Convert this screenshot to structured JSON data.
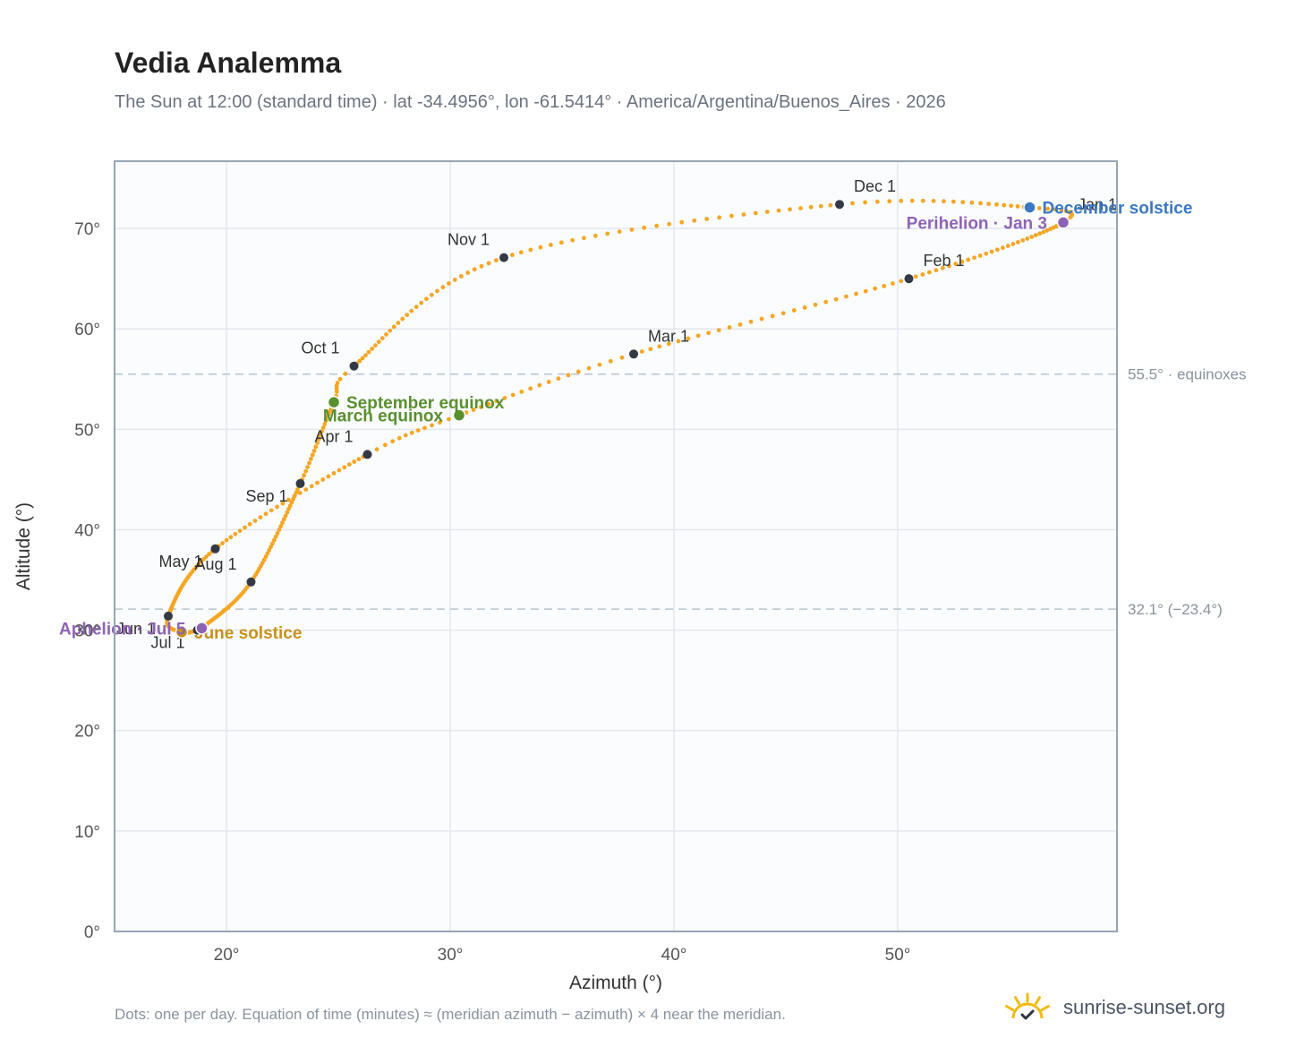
{
  "header": {
    "title": "Vedia Analemma",
    "subtitle": "The Sun at 12:00 (standard time) · lat -34.4956°, lon -61.5414° · America/Argentina/Buenos_Aires · 2026"
  },
  "footer": {
    "note": "Dots: one per day. Equation of time (minutes) ≈ (meridian azimuth − azimuth) × 4 near the meridian.",
    "brand": "sunrise-sunset.org"
  },
  "colors": {
    "path": "#f5a623",
    "month_marker": "#333a44",
    "equinox": "#5a8f2e",
    "june_solstice": "#c8901a",
    "december_solstice": "#3b78c3",
    "apsis": "#8e63b5",
    "reference_line": "#b8c4cf",
    "plot_bg": "#fafcfe",
    "grid": "#e3e8ee",
    "frame": "#98a4b3",
    "logo": "#f2b90f"
  },
  "chart_data": {
    "type": "scatter",
    "xlabel": "Azimuth (°)",
    "ylabel": "Altitude (°)",
    "xlim": [
      15,
      59.8
    ],
    "ylim": [
      0,
      76.7
    ],
    "x_ticks": [
      20,
      30,
      40,
      50
    ],
    "x_tick_labels": [
      "20°",
      "30°",
      "40°",
      "50°"
    ],
    "y_ticks": [
      0,
      10,
      20,
      30,
      40,
      50,
      60,
      70
    ],
    "y_tick_labels": [
      "0°",
      "10°",
      "20°",
      "30°",
      "40°",
      "50°",
      "60°",
      "70°"
    ],
    "grid": true,
    "reference_lines": [
      {
        "y": 55.5,
        "label": "55.5° · equinoxes"
      },
      {
        "y": 32.1,
        "label": "32.1° (−23.4°)"
      }
    ],
    "path_anchors": [
      {
        "day": 1,
        "x": 57.4,
        "y": 70.6
      },
      {
        "day": 32,
        "x": 50.5,
        "y": 65.0
      },
      {
        "day": 60,
        "x": 38.2,
        "y": 57.5
      },
      {
        "day": 79,
        "x": 30.4,
        "y": 51.4
      },
      {
        "day": 91,
        "x": 26.3,
        "y": 47.5
      },
      {
        "day": 121,
        "x": 19.5,
        "y": 38.1
      },
      {
        "day": 152,
        "x": 17.4,
        "y": 31.4
      },
      {
        "day": 172,
        "x": 18.0,
        "y": 29.8
      },
      {
        "day": 182,
        "x": 18.7,
        "y": 30.0
      },
      {
        "day": 186,
        "x": 18.9,
        "y": 30.2
      },
      {
        "day": 213,
        "x": 21.1,
        "y": 34.8
      },
      {
        "day": 244,
        "x": 23.3,
        "y": 44.6
      },
      {
        "day": 266,
        "x": 24.8,
        "y": 52.7
      },
      {
        "day": 274,
        "x": 25.7,
        "y": 56.3
      },
      {
        "day": 305,
        "x": 32.4,
        "y": 67.1
      },
      {
        "day": 335,
        "x": 47.4,
        "y": 72.4
      },
      {
        "day": 355,
        "x": 55.9,
        "y": 72.1
      },
      {
        "day": 366,
        "x": 57.4,
        "y": 70.6
      }
    ],
    "month_markers": [
      {
        "label": "Jan 1",
        "x": 57.4,
        "y": 70.6,
        "pos": "above-right"
      },
      {
        "label": "Feb 1",
        "x": 50.5,
        "y": 65.0,
        "pos": "above-right"
      },
      {
        "label": "Mar 1",
        "x": 38.2,
        "y": 57.5,
        "pos": "above-right"
      },
      {
        "label": "Apr 1",
        "x": 26.3,
        "y": 47.5,
        "pos": "above-left"
      },
      {
        "label": "May 1",
        "x": 19.5,
        "y": 38.1,
        "pos": "below-left"
      },
      {
        "label": "Jun 1",
        "x": 17.4,
        "y": 31.4,
        "pos": "below-left"
      },
      {
        "label": "Jul 1",
        "x": 18.7,
        "y": 30.0,
        "pos": "below-left"
      },
      {
        "label": "Aug 1",
        "x": 21.1,
        "y": 34.8,
        "pos": "above-left"
      },
      {
        "label": "Sep 1",
        "x": 23.3,
        "y": 44.6,
        "pos": "below-left"
      },
      {
        "label": "Oct 1",
        "x": 25.7,
        "y": 56.3,
        "pos": "above-left"
      },
      {
        "label": "Nov 1",
        "x": 32.4,
        "y": 67.1,
        "pos": "above-left"
      },
      {
        "label": "Dec 1",
        "x": 47.4,
        "y": 72.4,
        "pos": "above-right"
      }
    ],
    "events": [
      {
        "label": "March equinox",
        "x": 30.4,
        "y": 51.4,
        "color": "equinox",
        "align": "end"
      },
      {
        "label": "September equinox",
        "x": 24.8,
        "y": 52.7,
        "color": "equinox",
        "align": "start"
      },
      {
        "label": "June solstice",
        "x": 18.0,
        "y": 29.8,
        "color": "june_solstice",
        "align": "start"
      },
      {
        "label": "December solstice",
        "x": 55.9,
        "y": 72.1,
        "color": "december_solstice",
        "align": "start"
      },
      {
        "label": "Perihelion · Jan 3",
        "x": 57.4,
        "y": 70.6,
        "color": "apsis",
        "align": "end"
      },
      {
        "label": "Aphelion · Jul 5",
        "x": 18.9,
        "y": 30.2,
        "color": "apsis",
        "align": "end"
      }
    ]
  }
}
